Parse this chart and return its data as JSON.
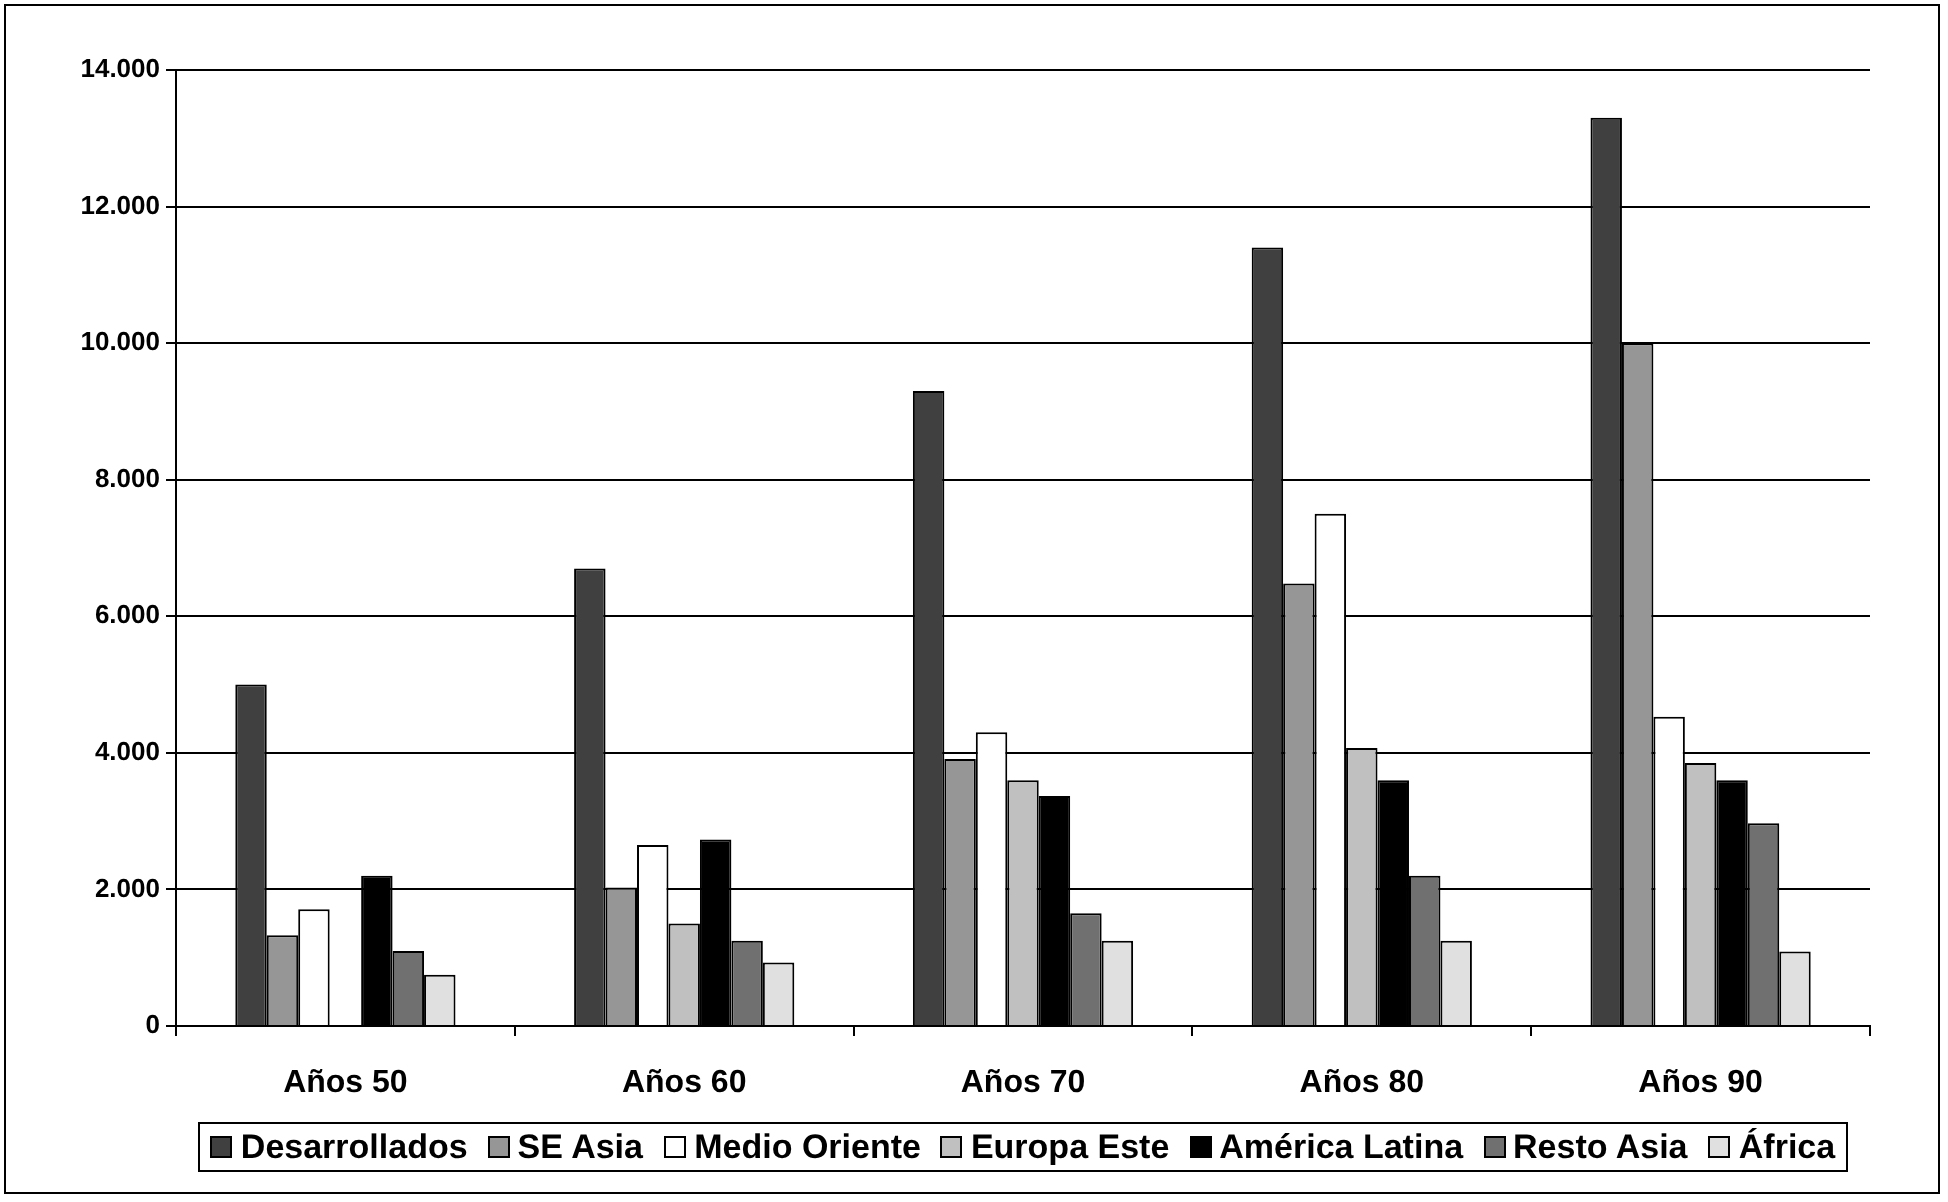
{
  "chart_data": {
    "type": "bar",
    "categories": [
      "Años 50",
      "Años 60",
      "Años 70",
      "Años 80",
      "Años 90"
    ],
    "series": [
      {
        "name": "Desarrollados",
        "color": "#404040",
        "values": [
          5000,
          6700,
          9300,
          11400,
          13300
        ]
      },
      {
        "name": "SE Asia",
        "color": "#969696",
        "values": [
          1330,
          2030,
          3910,
          6480,
          10000
        ]
      },
      {
        "name": "Medio Oriente",
        "color": "#ffffff",
        "values": [
          1710,
          2650,
          4300,
          7500,
          4530
        ]
      },
      {
        "name": "Europa Este",
        "color": "#c0c0c0",
        "values": [
          null,
          1500,
          3600,
          4070,
          3850
        ]
      },
      {
        "name": "América Latina",
        "color": "#000000",
        "values": [
          2200,
          2730,
          3370,
          3600,
          3600
        ]
      },
      {
        "name": "Resto Asia",
        "color": "#707070",
        "values": [
          1100,
          1250,
          1650,
          2200,
          2970
        ]
      },
      {
        "name": "África",
        "color": "#e0e0e0",
        "values": [
          750,
          930,
          1250,
          1250,
          1090
        ]
      }
    ],
    "ylim": [
      0,
      14000
    ],
    "yticks": [
      0,
      {
        "value": 2000,
        "label": "2.000"
      },
      {
        "value": 4000,
        "label": "4.000"
      },
      {
        "value": 6000,
        "label": "6.000"
      },
      {
        "value": 8000,
        "label": "8.000"
      },
      {
        "value": 10000,
        "label": "10.000"
      },
      {
        "value": 12000,
        "label": "12.000"
      },
      {
        "value": 14000,
        "label": "14.000"
      }
    ],
    "grid": "y",
    "legend": "bottom"
  }
}
